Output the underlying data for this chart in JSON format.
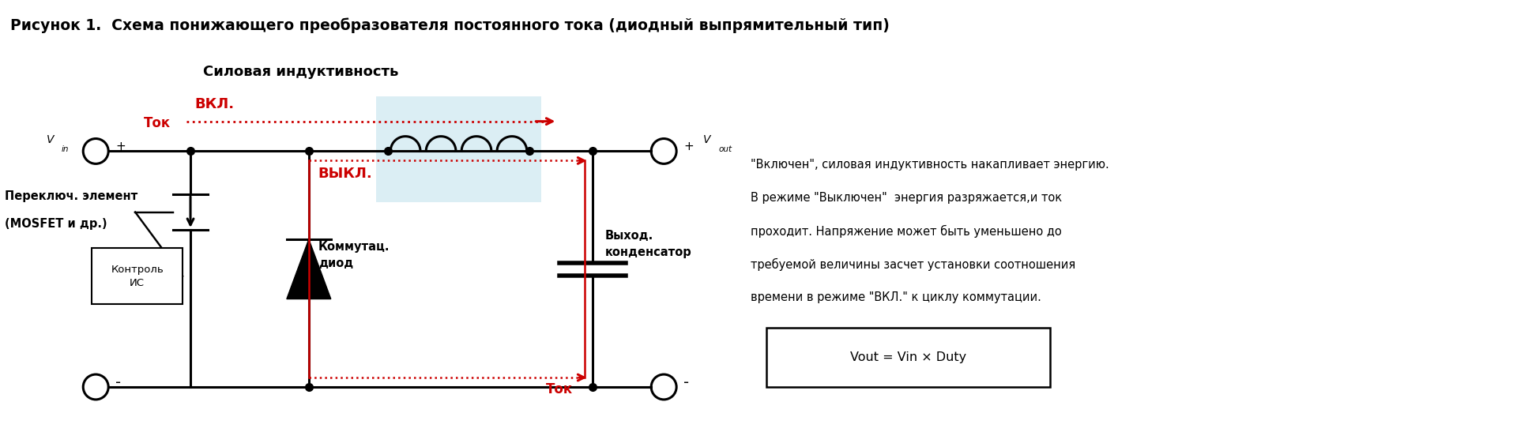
{
  "title": "Рисунок 1.  Схема понижающего преобразователя постоянного тока (диодный выпрямительный тип)",
  "subtitle": "Силовая индуктивность",
  "bg_color": "#ffffff",
  "line_color": "#000000",
  "red_color": "#cc0000",
  "light_blue": "#cce8f0",
  "label_switch_line1": "Переключ. элемент",
  "label_switch_line2": "(MOSFET и др.)",
  "label_control": "Контроль\nИС",
  "label_diode": "Коммутац.\nдиод",
  "label_cap": "Выход.\nконденсатор",
  "label_on": "ВКЛ.",
  "label_off": "ВЫКЛ.",
  "label_current_top": "Ток",
  "label_current_bot": "Ток",
  "description_line1": "\"Включен\", силовая индуктивность накапливает энергию.",
  "description_line2": "В режиме \"Выключен\"  энергия разряжается,и ток",
  "description_line3": "проходит. Напряжение может быть уменьшено до",
  "description_line4": "требуемой величины засчет установки соотношения",
  "description_line5": "времени в режиме \"ВКЛ.\" к циклу коммутации.",
  "formula": "Vout = Vin × Duty"
}
